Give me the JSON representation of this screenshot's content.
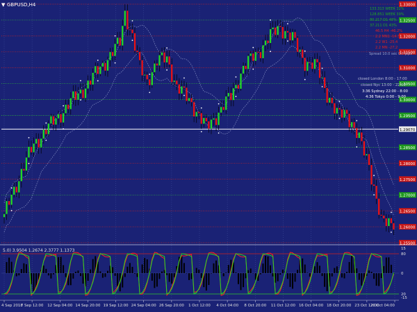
{
  "window": {
    "symbol_title": "GBPUSD,H4",
    "menu_glyph": "▼"
  },
  "colors": {
    "background": "#1a2275",
    "grid": "#3c4a9a",
    "bull": "#22dd22",
    "bear": "#ee1111",
    "wick": "#000000",
    "band": "#8c96c8",
    "level_green": "#2fc72f",
    "level_red": "#d02020",
    "price_line": "#ffffff",
    "label_green_bg": "#1e9a1e",
    "label_red_bg": "#c81818",
    "axis_text": "#e0e0e0",
    "osc_green": "#22dd22",
    "osc_red": "#ff2020",
    "osc_hist": "#000000"
  },
  "top_right_info": {
    "green_lines": [
      "133.313 WEEK  32%",
      "128.851 WEEK  39%",
      "80.217   D1   48%",
      "37.211   D1   43%"
    ],
    "red_lines": [
      "46.5   H4   -46.2%",
      "2.2  MN1   -14.5",
      "2.2  W1   -25.4",
      "2.2  MN   -27.2"
    ],
    "spread_line": "Spread 10.0   sec  0.7 pips"
  },
  "sessions": {
    "muted": [
      "closed London 8:00 - 17:00",
      "closed Nyc 13:00 - 22:00"
    ],
    "active": [
      "3:36 Sydney 22:00 - 8:00",
      "4:36 Tokyo 0:00 - 9:00"
    ]
  },
  "price_scale": [
    {
      "value": "1.33000",
      "kind": "red"
    },
    {
      "value": "1.32500",
      "kind": "green"
    },
    {
      "value": "1.32000",
      "kind": "red"
    },
    {
      "value": "1.31500",
      "kind": "red"
    },
    {
      "value": "1.31000",
      "kind": "red"
    },
    {
      "value": "1.30500",
      "kind": "green"
    },
    {
      "value": "1.30000",
      "kind": "green"
    },
    {
      "value": "1.29500",
      "kind": "green"
    },
    {
      "value": "1.29070",
      "kind": "plain"
    },
    {
      "value": "1.28500",
      "kind": "green"
    },
    {
      "value": "1.28000",
      "kind": "red"
    },
    {
      "value": "1.27500",
      "kind": "red"
    },
    {
      "value": "1.27000",
      "kind": "green"
    },
    {
      "value": "1.26500",
      "kind": "red"
    },
    {
      "value": "1.26000",
      "kind": "red"
    },
    {
      "value": "1.25500",
      "kind": "red"
    }
  ],
  "indicator": {
    "header": "5.0) 3.9504 1.2674 2.3777 1.1373",
    "scale": [
      "15",
      "80",
      "0",
      "20",
      "-15"
    ]
  },
  "time_axis": [
    "4 Sep 2018",
    "7 Sep 12:00",
    "12 Sep 04:00",
    "14 Sep 20:00",
    "19 Sep 12:00",
    "24 Sep 04:00",
    "26 Sep 20:00",
    "1 Oct 12:00",
    "4 Oct 04:00",
    "8 Oct 20:00",
    "11 Oct 12:00",
    "16 Oct 04:00",
    "18 Oct 20:00",
    "23 Oct 12:00",
    "26 Oct 04:00"
  ],
  "chart_data": {
    "type": "candlestick",
    "symbol": "GBPUSD",
    "timeframe": "H4",
    "y_range": [
      1.255,
      1.33
    ],
    "current_price": 1.2907,
    "close_path": [
      [
        0,
        1.263
      ],
      [
        3,
        1.27
      ],
      [
        12,
        1.286
      ],
      [
        20,
        1.293
      ],
      [
        28,
        1.3
      ],
      [
        34,
        1.305
      ],
      [
        40,
        1.311
      ],
      [
        47,
        1.318
      ],
      [
        49,
        1.3275
      ],
      [
        52,
        1.32
      ],
      [
        55,
        1.31
      ],
      [
        58,
        1.306
      ],
      [
        62,
        1.312
      ],
      [
        66,
        1.313
      ],
      [
        70,
        1.304
      ],
      [
        76,
        1.299
      ],
      [
        82,
        1.291
      ],
      [
        86,
        1.295
      ],
      [
        92,
        1.301
      ],
      [
        97,
        1.31
      ],
      [
        103,
        1.315
      ],
      [
        108,
        1.32
      ],
      [
        112,
        1.323
      ],
      [
        117,
        1.319
      ],
      [
        122,
        1.312
      ],
      [
        127,
        1.31
      ],
      [
        131,
        1.302
      ],
      [
        135,
        1.295
      ],
      [
        139,
        1.296
      ],
      [
        143,
        1.289
      ],
      [
        148,
        1.28
      ],
      [
        153,
        1.261
      ],
      [
        158,
        1.262
      ]
    ]
  }
}
